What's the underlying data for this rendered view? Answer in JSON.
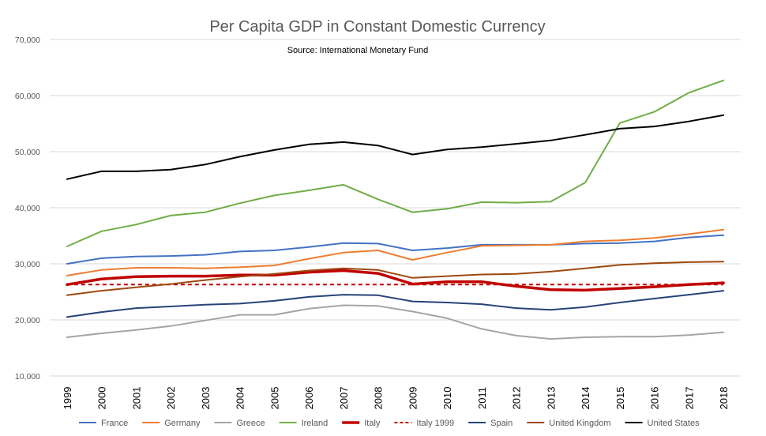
{
  "chart_data": {
    "type": "line",
    "title": "Per Capita GDP in Constant Domestic Currency",
    "subtitle": "Source: International Monetary Fund",
    "xlabel": "",
    "ylabel": "",
    "ylim": [
      10000,
      70000
    ],
    "yticks": [
      10000,
      20000,
      30000,
      40000,
      50000,
      60000,
      70000
    ],
    "ytick_labels": [
      "10,000",
      "20,000",
      "30,000",
      "40,000",
      "50,000",
      "60,000",
      "70,000"
    ],
    "grid": true,
    "legend_position": "bottom",
    "x": [
      "1999",
      "2000",
      "2001",
      "2002",
      "2003",
      "2004",
      "2005",
      "2006",
      "2007",
      "2008",
      "2009",
      "2010",
      "2011",
      "2012",
      "2013",
      "2014",
      "2015",
      "2016",
      "2017",
      "2018"
    ],
    "series": [
      {
        "name": "France",
        "color": "#4472c4",
        "dashed": false,
        "bold": false,
        "values": [
          30000,
          31000,
          31300,
          31400,
          31600,
          32200,
          32400,
          33000,
          33700,
          33600,
          32400,
          32800,
          33400,
          33400,
          33400,
          33600,
          33700,
          34000,
          34700,
          35100
        ]
      },
      {
        "name": "Germany",
        "color": "#ed7d31",
        "dashed": false,
        "bold": false,
        "values": [
          27900,
          28900,
          29300,
          29300,
          29200,
          29400,
          29700,
          30900,
          32000,
          32400,
          30700,
          32000,
          33200,
          33300,
          33400,
          34000,
          34200,
          34600,
          35300,
          36100
        ]
      },
      {
        "name": "Greece",
        "color": "#a5a5a5",
        "dashed": false,
        "bold": false,
        "values": [
          16900,
          17600,
          18200,
          18900,
          19900,
          20900,
          20900,
          22000,
          22600,
          22500,
          21500,
          20300,
          18400,
          17200,
          16600,
          16900,
          17000,
          17000,
          17300,
          17800
        ]
      },
      {
        "name": "Ireland",
        "color": "#70ad47",
        "dashed": false,
        "bold": false,
        "values": [
          33100,
          35800,
          37000,
          38600,
          39200,
          40800,
          42200,
          43100,
          44100,
          41500,
          39200,
          39800,
          41000,
          40900,
          41100,
          44500,
          55100,
          57100,
          60500,
          62700
        ]
      },
      {
        "name": "Italy",
        "color": "#c00000",
        "dashed": false,
        "bold": true,
        "values": [
          26300,
          27300,
          27700,
          27800,
          27800,
          28000,
          28000,
          28500,
          28800,
          28300,
          26400,
          26800,
          26800,
          26000,
          25400,
          25300,
          25600,
          25900,
          26300,
          26600
        ]
      },
      {
        "name": "Italy 1999",
        "color": "#c00000",
        "dashed": true,
        "bold": false,
        "values": [
          26300,
          26300,
          26300,
          26300,
          26300,
          26300,
          26300,
          26300,
          26300,
          26300,
          26300,
          26300,
          26300,
          26300,
          26300,
          26300,
          26300,
          26300,
          26300,
          26300
        ]
      },
      {
        "name": "Spain",
        "color": "#264478",
        "dashed": false,
        "bold": false,
        "values": [
          20500,
          21400,
          22100,
          22400,
          22700,
          22900,
          23400,
          24100,
          24500,
          24400,
          23300,
          23100,
          22800,
          22100,
          21800,
          22300,
          23100,
          23800,
          24500,
          25200
        ]
      },
      {
        "name": "United Kingdom",
        "color": "#9e480e",
        "dashed": false,
        "bold": false,
        "values": [
          24400,
          25200,
          25800,
          26400,
          27100,
          27700,
          28200,
          28800,
          29200,
          28900,
          27500,
          27800,
          28100,
          28200,
          28600,
          29200,
          29800,
          30100,
          30300,
          30400
        ]
      },
      {
        "name": "United States",
        "color": "#000000",
        "dashed": false,
        "bold": false,
        "values": [
          45100,
          46500,
          46500,
          46800,
          47700,
          49100,
          50300,
          51300,
          51700,
          51100,
          49500,
          50400,
          50800,
          51400,
          52000,
          53000,
          54100,
          54500,
          55400,
          56500
        ]
      }
    ]
  }
}
